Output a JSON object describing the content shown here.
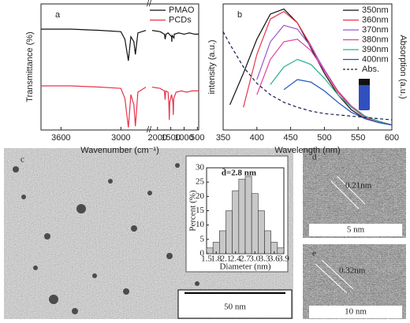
{
  "chart_data": [
    {
      "type": "line",
      "panel_label": "a",
      "x_label": "Wavenumber (cm⁻¹)",
      "y_label": "Transmittance (%)",
      "xlim": [
        3800,
        450
      ],
      "xbreak": [
        2750,
        2200
      ],
      "xticks": [
        3600,
        3000,
        2000,
        1500,
        1000,
        500
      ],
      "ylim": [
        0,
        100
      ],
      "legend": "upper right",
      "series": [
        {
          "name": "PMAO",
          "color": "#111111",
          "x": [
            3800,
            3500,
            3200,
            3000,
            2960,
            2925,
            2900,
            2870,
            2855,
            2830,
            2750,
            2200,
            1900,
            1740,
            1710,
            1680,
            1600,
            1470,
            1460,
            1450,
            1380,
            1370,
            1200,
            1000,
            800,
            600,
            450
          ],
          "values": [
            80,
            80,
            79,
            78,
            72,
            55,
            74,
            70,
            60,
            77,
            79,
            79,
            78,
            76,
            72,
            76,
            77,
            74,
            70,
            75,
            73,
            76,
            77,
            76,
            77,
            76,
            76
          ]
        },
        {
          "name": "PCDs",
          "color": "#e8334a",
          "x": [
            3800,
            3500,
            3200,
            3000,
            2960,
            2925,
            2900,
            2870,
            2855,
            2830,
            2750,
            2200,
            1900,
            1740,
            1715,
            1690,
            1600,
            1570,
            1555,
            1540,
            1470,
            1420,
            1405,
            1390,
            1300,
            1100,
            900,
            700,
            450
          ],
          "values": [
            35,
            35,
            34,
            33,
            25,
            2,
            28,
            20,
            3,
            30,
            34,
            34,
            33,
            31,
            24,
            31,
            30,
            20,
            8,
            22,
            28,
            22,
            12,
            25,
            30,
            31,
            30,
            31,
            31
          ]
        }
      ]
    },
    {
      "type": "line",
      "panel_label": "b",
      "x_label": "Wavelength (nm)",
      "y_label": "intensity (a.u.)",
      "y2_label": "Absorption (a.u.)",
      "xlim": [
        350,
        600
      ],
      "xticks": [
        350,
        400,
        450,
        500,
        550,
        600
      ],
      "ylim": [
        0,
        100
      ],
      "y2lim": [
        0,
        100
      ],
      "legend": "upper right",
      "series": [
        {
          "name": "350nm",
          "color": "#111111",
          "x": [
            360,
            380,
            400,
            420,
            440,
            460,
            480,
            500,
            520,
            540,
            560,
            580,
            600
          ],
          "values": [
            20,
            45,
            72,
            92,
            96,
            85,
            65,
            45,
            28,
            16,
            9,
            6,
            4
          ]
        },
        {
          "name": "360nm",
          "color": "#e8334a",
          "x": [
            360,
            380,
            400,
            420,
            440,
            460,
            480,
            500,
            520,
            540,
            560,
            580,
            600
          ],
          "values": [
            null,
            18,
            60,
            88,
            94,
            85,
            67,
            47,
            30,
            18,
            10,
            6,
            4
          ]
        },
        {
          "name": "370nm",
          "color": "#9b59d0",
          "x": [
            360,
            380,
            400,
            420,
            440,
            460,
            480,
            500,
            520,
            540,
            560,
            580,
            600
          ],
          "values": [
            null,
            null,
            40,
            70,
            83,
            80,
            66,
            48,
            31,
            19,
            11,
            7,
            4
          ]
        },
        {
          "name": "380nm",
          "color": "#e040a0",
          "x": [
            360,
            380,
            400,
            420,
            440,
            460,
            480,
            500,
            520,
            540,
            560,
            580,
            600
          ],
          "values": [
            null,
            null,
            28,
            56,
            70,
            72,
            63,
            47,
            31,
            19,
            11,
            7,
            4
          ]
        },
        {
          "name": "390nm",
          "color": "#2ab090",
          "x": [
            360,
            380,
            400,
            420,
            440,
            460,
            480,
            500,
            520,
            540,
            560,
            580,
            600
          ],
          "values": [
            null,
            null,
            null,
            36,
            50,
            56,
            52,
            41,
            28,
            18,
            11,
            7,
            4
          ]
        },
        {
          "name": "400nm",
          "color": "#2050c0",
          "x": [
            360,
            380,
            400,
            420,
            440,
            460,
            480,
            500,
            520,
            540,
            560,
            580,
            600
          ],
          "values": [
            null,
            null,
            null,
            null,
            32,
            40,
            38,
            31,
            22,
            14,
            9,
            6,
            4
          ]
        },
        {
          "name": "Abs.",
          "color": "#1a1a50",
          "dashed": true,
          "axis": "y2",
          "x": [
            350,
            360,
            380,
            400,
            420,
            440,
            460,
            480,
            500,
            520,
            540,
            560,
            580,
            600
          ],
          "values": [
            78,
            68,
            50,
            37,
            28,
            22,
            18,
            15,
            13,
            12,
            11,
            10,
            9,
            8
          ]
        }
      ]
    },
    {
      "type": "histogram",
      "title": "d̄=2.8 nm",
      "x_label": "Diameter (nm)",
      "y_label": "Percent (%)",
      "color": "#c8c8c8",
      "bins": [
        1.5,
        1.7,
        1.9,
        2.1,
        2.3,
        2.5,
        2.7,
        2.9,
        3.1,
        3.3,
        3.5,
        3.7,
        3.9
      ],
      "values": [
        2,
        4,
        8,
        15,
        22,
        26,
        27,
        21,
        15,
        8,
        4,
        2
      ],
      "xlim": [
        1.5,
        3.9
      ],
      "xticks": [
        1.5,
        1.8,
        2.1,
        2.4,
        2.7,
        {
          "value": 3,
          "label": "3.0"
        },
        3.3,
        3.6,
        3.9
      ],
      "ylim": [
        0,
        30
      ],
      "yticks": [
        0,
        5,
        10,
        15,
        20,
        25,
        30
      ]
    }
  ],
  "images": [
    {
      "label": "c",
      "scale_bar": "50 nm"
    },
    {
      "label": "d",
      "annotation": "0.21nm",
      "scale_bar": "5 nm"
    },
    {
      "label": "e",
      "annotation": "0.32nm",
      "scale_bar": "10 nm"
    }
  ]
}
